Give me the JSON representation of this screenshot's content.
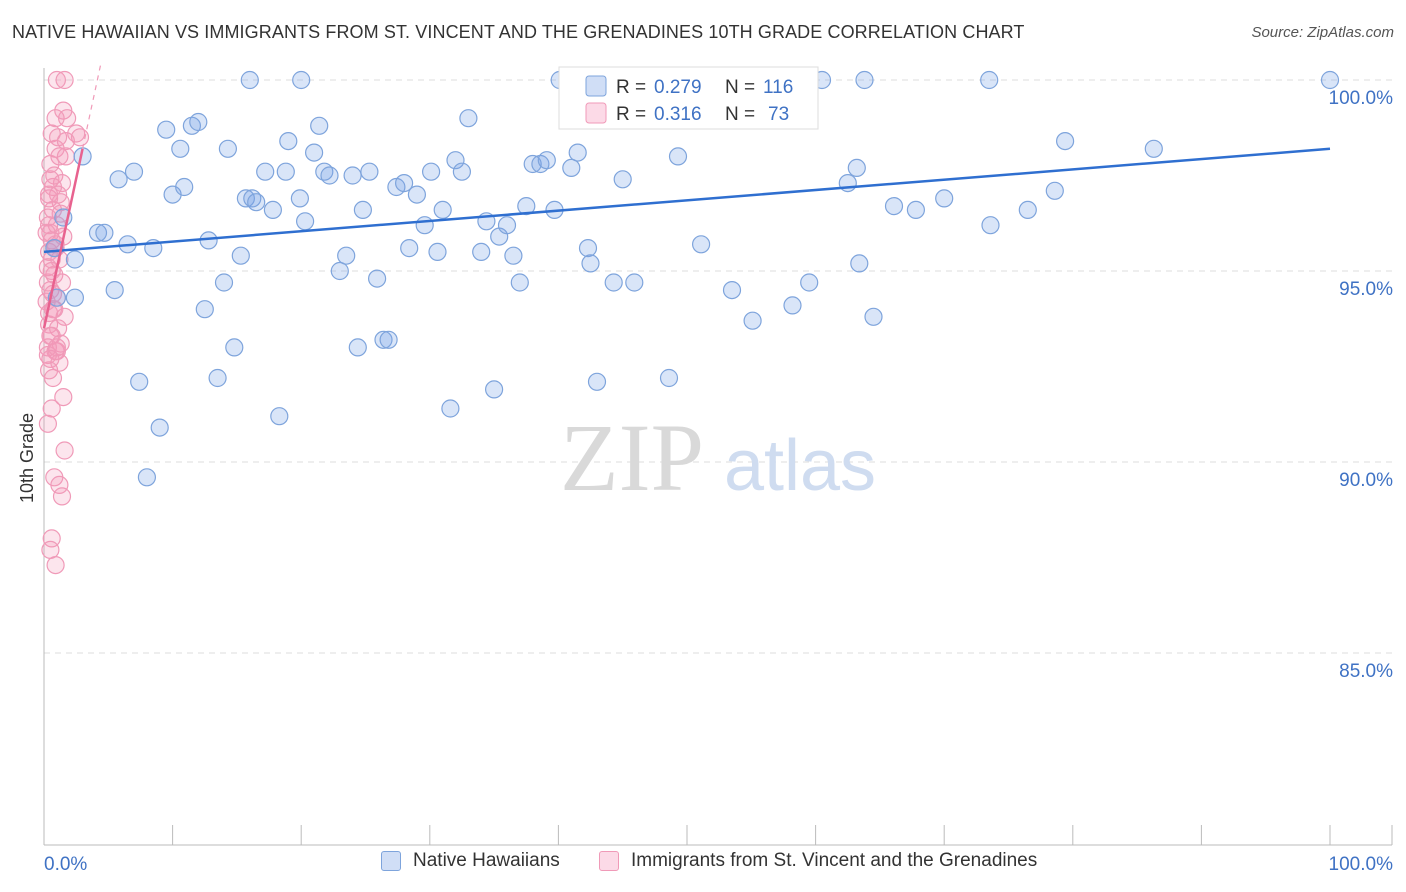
{
  "title": "NATIVE HAWAIIAN VS IMMIGRANTS FROM ST. VINCENT AND THE GRENADINES 10TH GRADE CORRELATION CHART",
  "source": "Source: ZipAtlas.com",
  "watermark": {
    "zip": "ZIP",
    "atlas": "atlas"
  },
  "colors": {
    "blue_fill": "rgba(120,160,230,0.28)",
    "blue_stroke": "#7ea4dc",
    "blue_line": "#2f6fd0",
    "pink_fill": "rgba(245,150,185,0.25)",
    "pink_stroke": "#f09ab8",
    "pink_line": "#e8628f",
    "axis_label": "#3f72c4",
    "grid": "#dddddd"
  },
  "legend_stats": [
    {
      "r_label": "R =",
      "r_value": "0.279",
      "n_label": "N =",
      "n_value": "116"
    },
    {
      "r_label": "R =",
      "r_value": "0.316",
      "n_label": "N =",
      "n_value": "73"
    }
  ],
  "chart_data": {
    "type": "scatter",
    "title": "NATIVE HAWAIIAN VS IMMIGRANTS FROM ST. VINCENT AND THE GRENADINES 10TH GRADE CORRELATION CHART",
    "xlabel": "",
    "ylabel": "10th Grade",
    "xlim": [
      0,
      100
    ],
    "ylim": [
      80,
      100.8
    ],
    "x_tick_labels": [
      "0.0%",
      "100.0%"
    ],
    "y_ticks": [
      85,
      90,
      95,
      100
    ],
    "y_tick_labels": [
      "85.0%",
      "90.0%",
      "95.0%",
      "100.0%"
    ],
    "grid": true,
    "legend_position": "bottom",
    "series": [
      {
        "name": "Native Hawaiians",
        "R": 0.279,
        "N": 116,
        "trend": [
          [
            0,
            95.5
          ],
          [
            100,
            98.2
          ]
        ],
        "points": [
          [
            0.8,
            95.6
          ],
          [
            1.0,
            94.3
          ],
          [
            1.5,
            96.4
          ],
          [
            2.4,
            95.3
          ],
          [
            2.4,
            94.3
          ],
          [
            3.0,
            98.0
          ],
          [
            4.2,
            96.0
          ],
          [
            4.7,
            96.0
          ],
          [
            5.5,
            94.5
          ],
          [
            5.8,
            97.4
          ],
          [
            6.5,
            95.7
          ],
          [
            7.0,
            97.6
          ],
          [
            7.4,
            92.1
          ],
          [
            8.0,
            89.6
          ],
          [
            8.5,
            95.6
          ],
          [
            9.0,
            90.9
          ],
          [
            9.5,
            98.7
          ],
          [
            10.0,
            97.0
          ],
          [
            10.6,
            98.2
          ],
          [
            10.9,
            97.2
          ],
          [
            11.5,
            98.8
          ],
          [
            12.0,
            98.9
          ],
          [
            12.5,
            94.0
          ],
          [
            12.8,
            95.8
          ],
          [
            13.5,
            92.2
          ],
          [
            14.0,
            94.7
          ],
          [
            14.3,
            98.2
          ],
          [
            14.8,
            93.0
          ],
          [
            15.3,
            95.4
          ],
          [
            15.7,
            96.9
          ],
          [
            16.2,
            96.9
          ],
          [
            16.5,
            96.8
          ],
          [
            17.2,
            97.6
          ],
          [
            17.8,
            96.6
          ],
          [
            18.3,
            91.2
          ],
          [
            18.8,
            97.6
          ],
          [
            19.0,
            98.4
          ],
          [
            19.9,
            96.9
          ],
          [
            20.3,
            96.3
          ],
          [
            21.0,
            98.1
          ],
          [
            21.4,
            98.8
          ],
          [
            21.8,
            97.6
          ],
          [
            22.2,
            97.5
          ],
          [
            23.0,
            95.0
          ],
          [
            23.5,
            95.4
          ],
          [
            24.0,
            97.5
          ],
          [
            24.4,
            93.0
          ],
          [
            24.8,
            96.6
          ],
          [
            25.3,
            97.6
          ],
          [
            25.9,
            94.8
          ],
          [
            26.4,
            93.2
          ],
          [
            26.8,
            93.2
          ],
          [
            27.4,
            97.2
          ],
          [
            28.0,
            97.3
          ],
          [
            28.4,
            95.6
          ],
          [
            29.0,
            97.0
          ],
          [
            29.6,
            96.2
          ],
          [
            30.1,
            97.6
          ],
          [
            30.6,
            95.5
          ],
          [
            31.0,
            96.6
          ],
          [
            31.6,
            91.4
          ],
          [
            32.0,
            97.9
          ],
          [
            32.5,
            97.6
          ],
          [
            33.0,
            99.0
          ],
          [
            34.0,
            95.5
          ],
          [
            34.4,
            96.3
          ],
          [
            35.0,
            91.9
          ],
          [
            35.4,
            95.9
          ],
          [
            36.0,
            96.2
          ],
          [
            36.5,
            95.4
          ],
          [
            37.0,
            94.7
          ],
          [
            37.5,
            96.7
          ],
          [
            38.0,
            97.8
          ],
          [
            38.6,
            97.8
          ],
          [
            39.1,
            97.9
          ],
          [
            39.7,
            96.6
          ],
          [
            41.0,
            97.7
          ],
          [
            41.5,
            98.1
          ],
          [
            42.3,
            95.6
          ],
          [
            42.5,
            95.2
          ],
          [
            43.0,
            92.1
          ],
          [
            44.3,
            94.7
          ],
          [
            45.0,
            97.4
          ],
          [
            45.9,
            94.7
          ],
          [
            46.4,
            99.8
          ],
          [
            46.8,
            99.0
          ],
          [
            48.6,
            92.2
          ],
          [
            49.3,
            98.0
          ],
          [
            51.1,
            95.7
          ],
          [
            53.5,
            94.5
          ],
          [
            55.1,
            93.7
          ],
          [
            58.2,
            94.1
          ],
          [
            59.5,
            94.7
          ],
          [
            62.5,
            97.3
          ],
          [
            63.2,
            97.7
          ],
          [
            63.4,
            95.2
          ],
          [
            64.5,
            93.8
          ],
          [
            66.1,
            96.7
          ],
          [
            67.8,
            96.6
          ],
          [
            70.0,
            96.9
          ],
          [
            73.6,
            96.2
          ],
          [
            76.5,
            96.6
          ],
          [
            78.6,
            97.1
          ],
          [
            79.4,
            98.4
          ],
          [
            86.3,
            98.2
          ],
          [
            100.0,
            100.0
          ],
          [
            43.0,
            100.0
          ],
          [
            58.0,
            100.0
          ],
          [
            59.4,
            100.0
          ],
          [
            63.8,
            100.0
          ],
          [
            73.5,
            100.0
          ],
          [
            45.0,
            100.0
          ],
          [
            40.1,
            100.0
          ],
          [
            20.0,
            100.0
          ],
          [
            60.5,
            100.0
          ],
          [
            16.0,
            100.0
          ]
        ]
      },
      {
        "name": "Immigrants from St. Vincent and the Grenadines",
        "R": 0.316,
        "N": 73,
        "trend": [
          [
            0,
            93.5
          ],
          [
            3.0,
            98.2
          ]
        ],
        "points": [
          [
            1.0,
            100.0
          ],
          [
            1.6,
            100.0
          ],
          [
            1.5,
            99.2
          ],
          [
            1.8,
            99.0
          ],
          [
            2.5,
            98.6
          ],
          [
            2.8,
            98.5
          ],
          [
            0.6,
            98.6
          ],
          [
            0.9,
            98.2
          ],
          [
            1.2,
            98.0
          ],
          [
            0.5,
            97.8
          ],
          [
            1.7,
            98.0
          ],
          [
            0.8,
            97.5
          ],
          [
            1.4,
            97.3
          ],
          [
            1.1,
            97.0
          ],
          [
            0.4,
            96.9
          ],
          [
            1.3,
            96.8
          ],
          [
            0.7,
            96.6
          ],
          [
            0.3,
            96.4
          ],
          [
            1.0,
            96.2
          ],
          [
            0.5,
            96.0
          ],
          [
            1.5,
            95.9
          ],
          [
            0.6,
            95.8
          ],
          [
            0.9,
            95.6
          ],
          [
            0.4,
            95.5
          ],
          [
            1.2,
            95.3
          ],
          [
            0.3,
            95.1
          ],
          [
            0.8,
            94.9
          ],
          [
            1.4,
            94.7
          ],
          [
            0.5,
            94.5
          ],
          [
            1.0,
            94.3
          ],
          [
            0.2,
            94.2
          ],
          [
            0.7,
            94.0
          ],
          [
            1.6,
            93.8
          ],
          [
            0.4,
            93.6
          ],
          [
            1.1,
            93.5
          ],
          [
            0.6,
            93.3
          ],
          [
            1.3,
            93.1
          ],
          [
            0.3,
            93.0
          ],
          [
            0.9,
            92.9
          ],
          [
            0.5,
            92.7
          ],
          [
            1.2,
            92.6
          ],
          [
            0.4,
            92.4
          ],
          [
            0.7,
            92.2
          ],
          [
            1.5,
            91.7
          ],
          [
            0.6,
            91.4
          ],
          [
            0.3,
            91.0
          ],
          [
            1.6,
            90.3
          ],
          [
            0.8,
            89.6
          ],
          [
            1.2,
            89.4
          ],
          [
            1.4,
            89.1
          ],
          [
            0.6,
            88.0
          ],
          [
            0.5,
            87.7
          ],
          [
            0.9,
            87.3
          ],
          [
            0.4,
            96.2
          ],
          [
            0.6,
            95.3
          ],
          [
            0.3,
            94.7
          ],
          [
            0.8,
            94.0
          ],
          [
            1.0,
            92.9
          ],
          [
            0.5,
            93.3
          ],
          [
            0.2,
            96.0
          ],
          [
            0.7,
            97.2
          ],
          [
            0.4,
            97.0
          ],
          [
            1.1,
            98.5
          ],
          [
            0.9,
            99.0
          ],
          [
            1.7,
            98.4
          ],
          [
            0.6,
            95.0
          ],
          [
            0.4,
            93.9
          ],
          [
            0.3,
            92.8
          ],
          [
            0.9,
            95.7
          ],
          [
            1.3,
            96.5
          ],
          [
            0.5,
            97.4
          ],
          [
            0.7,
            94.4
          ],
          [
            1.0,
            93.0
          ]
        ]
      }
    ]
  }
}
